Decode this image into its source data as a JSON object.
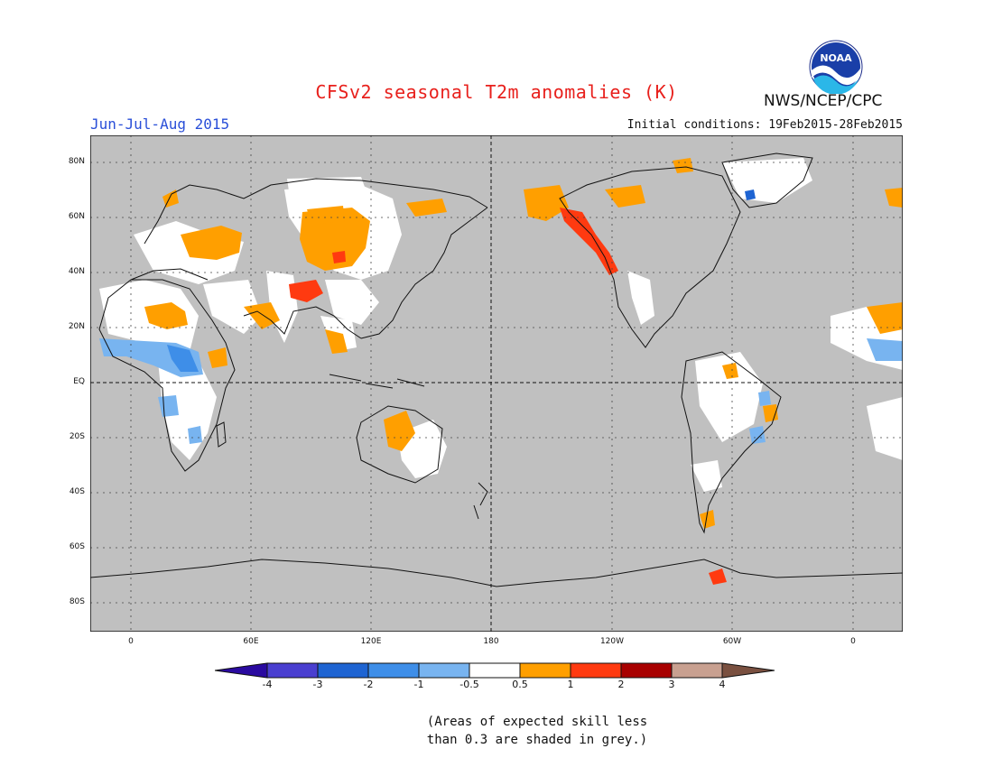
{
  "header": {
    "title": "CFSv2 seasonal T2m anomalies (K)",
    "season": "Jun-Jul-Aug 2015",
    "agency": "NWS/NCEP/CPC",
    "initial_conditions": "Initial conditions: 19Feb2015-28Feb2015",
    "logo_text": "NOAA"
  },
  "map": {
    "lat_labels": [
      "80N",
      "60N",
      "40N",
      "20N",
      "EQ",
      "20S",
      "40S",
      "60S",
      "80S"
    ],
    "lon_labels": [
      "0",
      "60E",
      "120E",
      "180",
      "120W",
      "60W",
      "0"
    ],
    "background_grey": "#c0c0c0",
    "colors": {
      "lt_neg_4": "#2a0aa0",
      "neg_4_neg_3": "#4a3fd0",
      "neg_3_neg_2": "#1e64d2",
      "neg_2_neg_1": "#3e8ee8",
      "neg_1_neg_0_5": "#78b4f0",
      "neutral": "#ffffff",
      "pos_0_5_1": "#ff9f00",
      "pos_1_2": "#ff3a10",
      "pos_2_3": "#a80000",
      "pos_3_4": "#c8a090",
      "gt_4": "#7a5040"
    }
  },
  "colorbar": {
    "labels": [
      "-4",
      "-3",
      "-2",
      "-1",
      "-0.5",
      "0.5",
      "1",
      "2",
      "3",
      "4"
    ],
    "colors": [
      "#4a3fd0",
      "#1e64d2",
      "#3e8ee8",
      "#78b4f0",
      "#ffffff",
      "#ff9f00",
      "#ff3a10",
      "#a80000",
      "#c8a090"
    ],
    "low_end_color": "#2a0aa0",
    "high_end_color": "#7a5040"
  },
  "note": {
    "line1": "(Areas of expected skill less",
    "line2": "than 0.3 are shaded in grey.)"
  }
}
